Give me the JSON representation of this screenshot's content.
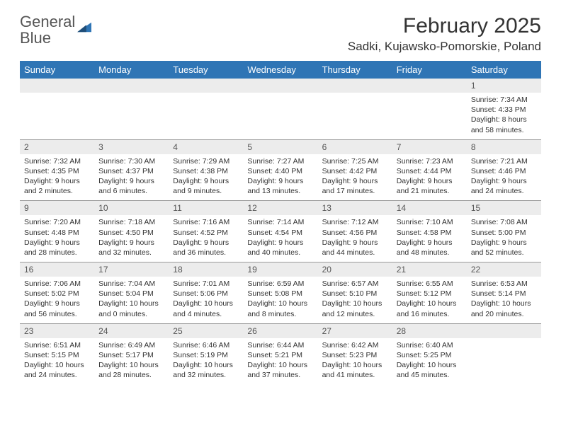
{
  "brand": {
    "name1": "General",
    "name2": "Blue"
  },
  "title": "February 2025",
  "location": "Sadki, Kujawsko-Pomorskie, Poland",
  "colors": {
    "header_bg": "#2f75b5",
    "header_fg": "#ffffff",
    "daynum_bg": "#ececec",
    "text": "#333333",
    "rule": "#999999"
  },
  "day_headers": [
    "Sunday",
    "Monday",
    "Tuesday",
    "Wednesday",
    "Thursday",
    "Friday",
    "Saturday"
  ],
  "weeks": [
    [
      {
        "n": "",
        "sunrise": "",
        "sunset": "",
        "daylight": ""
      },
      {
        "n": "",
        "sunrise": "",
        "sunset": "",
        "daylight": ""
      },
      {
        "n": "",
        "sunrise": "",
        "sunset": "",
        "daylight": ""
      },
      {
        "n": "",
        "sunrise": "",
        "sunset": "",
        "daylight": ""
      },
      {
        "n": "",
        "sunrise": "",
        "sunset": "",
        "daylight": ""
      },
      {
        "n": "",
        "sunrise": "",
        "sunset": "",
        "daylight": ""
      },
      {
        "n": "1",
        "sunrise": "Sunrise: 7:34 AM",
        "sunset": "Sunset: 4:33 PM",
        "daylight": "Daylight: 8 hours and 58 minutes."
      }
    ],
    [
      {
        "n": "2",
        "sunrise": "Sunrise: 7:32 AM",
        "sunset": "Sunset: 4:35 PM",
        "daylight": "Daylight: 9 hours and 2 minutes."
      },
      {
        "n": "3",
        "sunrise": "Sunrise: 7:30 AM",
        "sunset": "Sunset: 4:37 PM",
        "daylight": "Daylight: 9 hours and 6 minutes."
      },
      {
        "n": "4",
        "sunrise": "Sunrise: 7:29 AM",
        "sunset": "Sunset: 4:38 PM",
        "daylight": "Daylight: 9 hours and 9 minutes."
      },
      {
        "n": "5",
        "sunrise": "Sunrise: 7:27 AM",
        "sunset": "Sunset: 4:40 PM",
        "daylight": "Daylight: 9 hours and 13 minutes."
      },
      {
        "n": "6",
        "sunrise": "Sunrise: 7:25 AM",
        "sunset": "Sunset: 4:42 PM",
        "daylight": "Daylight: 9 hours and 17 minutes."
      },
      {
        "n": "7",
        "sunrise": "Sunrise: 7:23 AM",
        "sunset": "Sunset: 4:44 PM",
        "daylight": "Daylight: 9 hours and 21 minutes."
      },
      {
        "n": "8",
        "sunrise": "Sunrise: 7:21 AM",
        "sunset": "Sunset: 4:46 PM",
        "daylight": "Daylight: 9 hours and 24 minutes."
      }
    ],
    [
      {
        "n": "9",
        "sunrise": "Sunrise: 7:20 AM",
        "sunset": "Sunset: 4:48 PM",
        "daylight": "Daylight: 9 hours and 28 minutes."
      },
      {
        "n": "10",
        "sunrise": "Sunrise: 7:18 AM",
        "sunset": "Sunset: 4:50 PM",
        "daylight": "Daylight: 9 hours and 32 minutes."
      },
      {
        "n": "11",
        "sunrise": "Sunrise: 7:16 AM",
        "sunset": "Sunset: 4:52 PM",
        "daylight": "Daylight: 9 hours and 36 minutes."
      },
      {
        "n": "12",
        "sunrise": "Sunrise: 7:14 AM",
        "sunset": "Sunset: 4:54 PM",
        "daylight": "Daylight: 9 hours and 40 minutes."
      },
      {
        "n": "13",
        "sunrise": "Sunrise: 7:12 AM",
        "sunset": "Sunset: 4:56 PM",
        "daylight": "Daylight: 9 hours and 44 minutes."
      },
      {
        "n": "14",
        "sunrise": "Sunrise: 7:10 AM",
        "sunset": "Sunset: 4:58 PM",
        "daylight": "Daylight: 9 hours and 48 minutes."
      },
      {
        "n": "15",
        "sunrise": "Sunrise: 7:08 AM",
        "sunset": "Sunset: 5:00 PM",
        "daylight": "Daylight: 9 hours and 52 minutes."
      }
    ],
    [
      {
        "n": "16",
        "sunrise": "Sunrise: 7:06 AM",
        "sunset": "Sunset: 5:02 PM",
        "daylight": "Daylight: 9 hours and 56 minutes."
      },
      {
        "n": "17",
        "sunrise": "Sunrise: 7:04 AM",
        "sunset": "Sunset: 5:04 PM",
        "daylight": "Daylight: 10 hours and 0 minutes."
      },
      {
        "n": "18",
        "sunrise": "Sunrise: 7:01 AM",
        "sunset": "Sunset: 5:06 PM",
        "daylight": "Daylight: 10 hours and 4 minutes."
      },
      {
        "n": "19",
        "sunrise": "Sunrise: 6:59 AM",
        "sunset": "Sunset: 5:08 PM",
        "daylight": "Daylight: 10 hours and 8 minutes."
      },
      {
        "n": "20",
        "sunrise": "Sunrise: 6:57 AM",
        "sunset": "Sunset: 5:10 PM",
        "daylight": "Daylight: 10 hours and 12 minutes."
      },
      {
        "n": "21",
        "sunrise": "Sunrise: 6:55 AM",
        "sunset": "Sunset: 5:12 PM",
        "daylight": "Daylight: 10 hours and 16 minutes."
      },
      {
        "n": "22",
        "sunrise": "Sunrise: 6:53 AM",
        "sunset": "Sunset: 5:14 PM",
        "daylight": "Daylight: 10 hours and 20 minutes."
      }
    ],
    [
      {
        "n": "23",
        "sunrise": "Sunrise: 6:51 AM",
        "sunset": "Sunset: 5:15 PM",
        "daylight": "Daylight: 10 hours and 24 minutes."
      },
      {
        "n": "24",
        "sunrise": "Sunrise: 6:49 AM",
        "sunset": "Sunset: 5:17 PM",
        "daylight": "Daylight: 10 hours and 28 minutes."
      },
      {
        "n": "25",
        "sunrise": "Sunrise: 6:46 AM",
        "sunset": "Sunset: 5:19 PM",
        "daylight": "Daylight: 10 hours and 32 minutes."
      },
      {
        "n": "26",
        "sunrise": "Sunrise: 6:44 AM",
        "sunset": "Sunset: 5:21 PM",
        "daylight": "Daylight: 10 hours and 37 minutes."
      },
      {
        "n": "27",
        "sunrise": "Sunrise: 6:42 AM",
        "sunset": "Sunset: 5:23 PM",
        "daylight": "Daylight: 10 hours and 41 minutes."
      },
      {
        "n": "28",
        "sunrise": "Sunrise: 6:40 AM",
        "sunset": "Sunset: 5:25 PM",
        "daylight": "Daylight: 10 hours and 45 minutes."
      },
      {
        "n": "",
        "sunrise": "",
        "sunset": "",
        "daylight": ""
      }
    ]
  ]
}
